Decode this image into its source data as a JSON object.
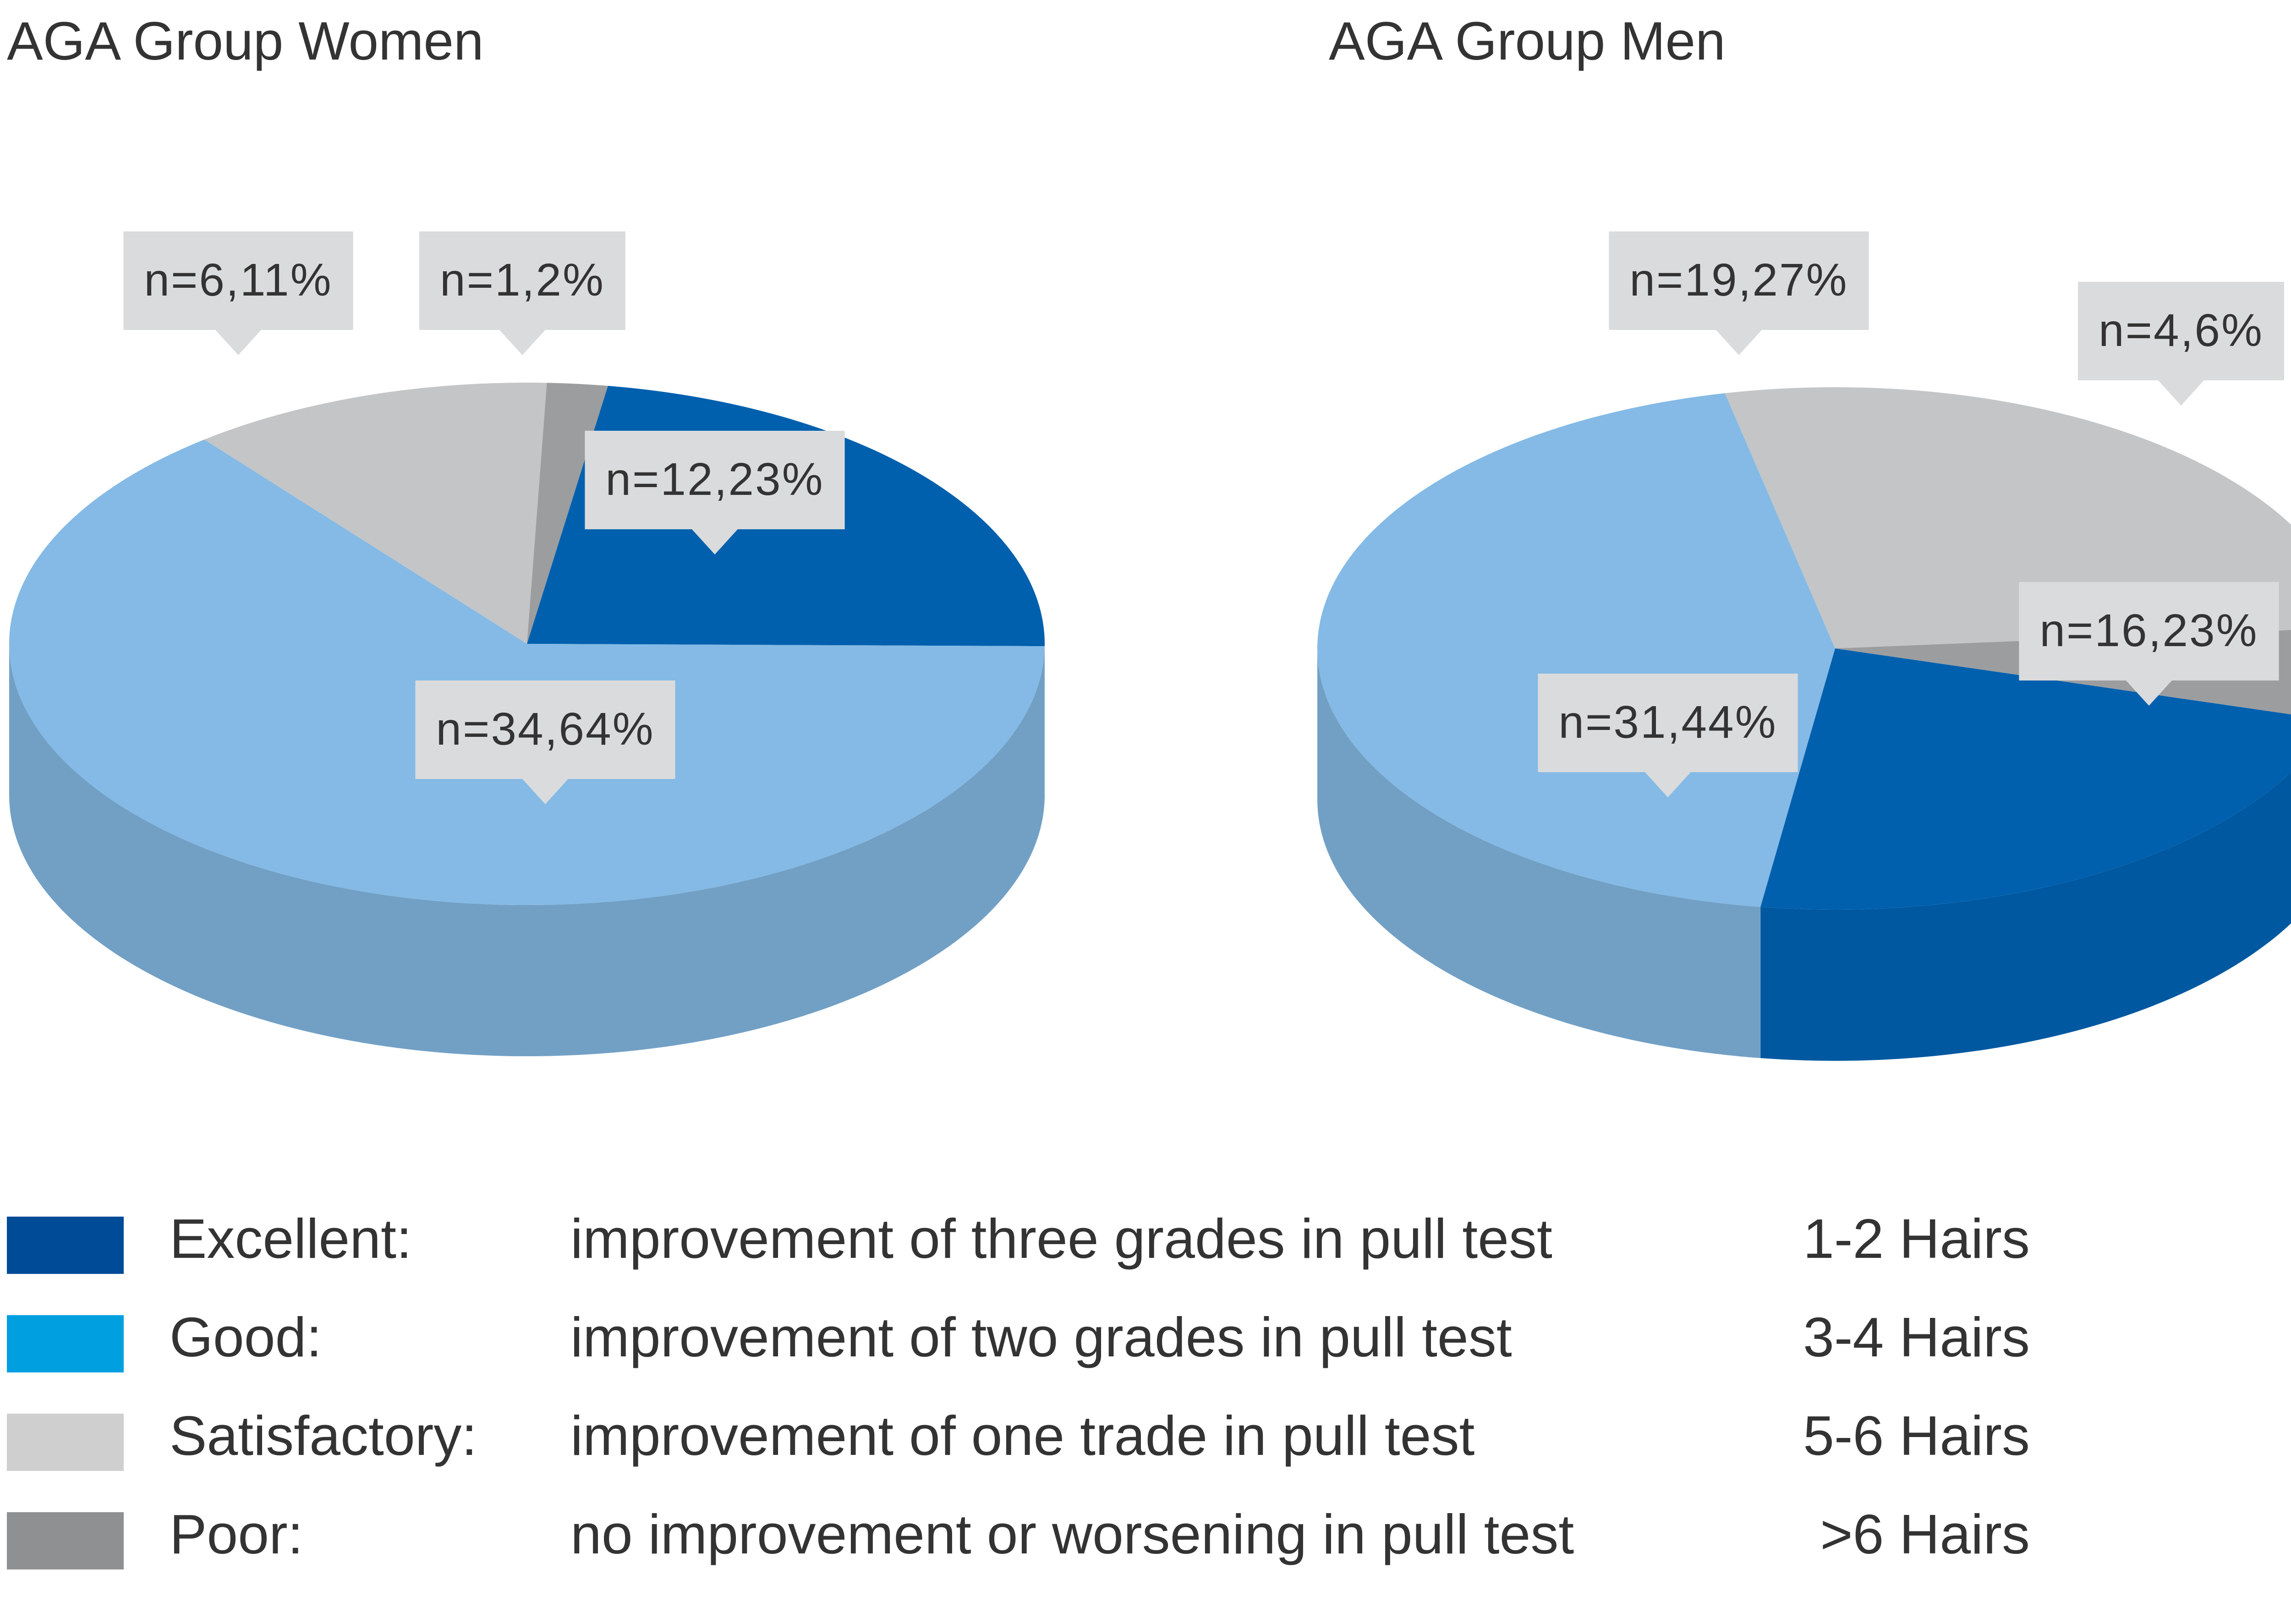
{
  "colors": {
    "excellent": "#0060AE",
    "good": "#84BAE5",
    "satisfactory": "#C4C5C7",
    "poor": "#9C9D9F",
    "label_box": "#DADBDC"
  },
  "chart_data": [
    {
      "type": "pie",
      "title": "AGA Group Women",
      "slices": [
        {
          "category": "Excellent",
          "n": 12,
          "percent": 23,
          "label": "n=12,23%"
        },
        {
          "category": "Good",
          "n": 34,
          "percent": 64,
          "label": "n=34,64%"
        },
        {
          "category": "Satisfactory",
          "n": 6,
          "percent": 11,
          "label": "n=6,11%"
        },
        {
          "category": "Poor",
          "n": 1,
          "percent": 2,
          "label": "n=1,2%"
        }
      ]
    },
    {
      "type": "pie",
      "title": "AGA Group Men",
      "slices": [
        {
          "category": "Excellent",
          "n": 16,
          "percent": 23,
          "label": "n=16,23%"
        },
        {
          "category": "Good",
          "n": 31,
          "percent": 44,
          "label": "n=31,44%"
        },
        {
          "category": "Satisfactory",
          "n": 19,
          "percent": 27,
          "label": "n=19,27%"
        },
        {
          "category": "Poor",
          "n": 4,
          "percent": 6,
          "label": "n=4,6%"
        }
      ]
    }
  ],
  "legend": [
    {
      "key": "excellent",
      "term": "Excellent:",
      "description": "improvement of three grades in pull test",
      "hairs": "1-2 Hairs",
      "swatch": "#004B97"
    },
    {
      "key": "good",
      "term": "Good:",
      "description": "improvement of two grades in pull test",
      "hairs": "3-4 Hairs",
      "swatch": "#009FE0"
    },
    {
      "key": "satisfactory",
      "term": "Satisfactory:",
      "description": "improvement of one trade in pull test",
      "hairs": "5-6 Hairs",
      "swatch": "#CFCFCF"
    },
    {
      "key": "poor",
      "term": "Poor:",
      "description": "no improvement or worsening in pull test",
      "hairs": ">6 Hairs",
      "swatch": "#8F9091"
    }
  ]
}
